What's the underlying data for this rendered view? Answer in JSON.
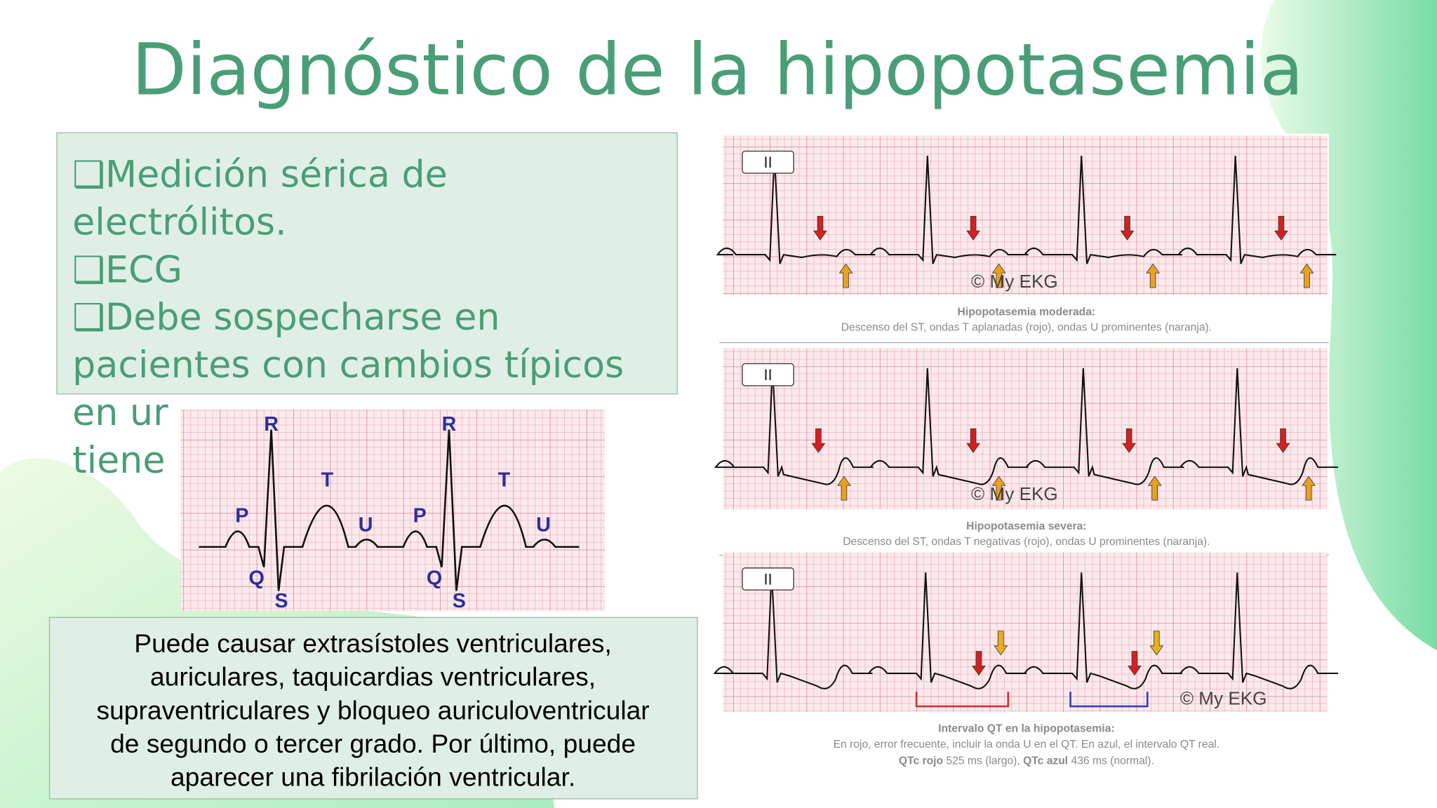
{
  "title": "Diagnóstico de la hipopotasemia",
  "left_box": {
    "lines": [
      "❑Medición sérica de",
      "electrólitos.",
      "❑ECG",
      "❑Debe sospecharse en",
      "pacientes con cambios típicos",
      "en ur",
      "tiene"
    ]
  },
  "small_ecg": {
    "labels": [
      "R",
      "R",
      "T",
      "T",
      "P",
      "P",
      "U",
      "U",
      "Q",
      "Q",
      "S",
      "S"
    ]
  },
  "bottom_box": {
    "lines": [
      "Puede causar extrasístoles ventriculares,",
      "auriculares, taquicardias ventriculares,",
      "supraventriculares y bloqueo auriculoventricular",
      "de segundo o tercer grado. Por último, puede",
      "aparecer una fibrilación ventricular."
    ]
  },
  "ecg_panel": {
    "strips": [
      {
        "lead": "II",
        "watermark": "© My EKG",
        "caption_title": "Hipopotasemia moderada:",
        "caption": "Descenso del ST, ondas T aplanadas (rojo), ondas U prominentes (naranja)."
      },
      {
        "lead": "II",
        "watermark": "© My EKG",
        "caption_title": "Hipopotasemia severa:",
        "caption": "Descenso del ST, ondas T negativas (rojo), ondas U prominentes (naranja)."
      },
      {
        "lead": "II",
        "watermark": "© My EKG",
        "caption_title": "Intervalo QT en la hipopotasemia:",
        "caption": "En rojo, error frecuente, incluir la onda U en el QT. En azul, el intervalo QT real.",
        "caption_parts": [
          "QTc rojo",
          " 525 ms (largo), ",
          "QTc azul",
          " 436 ms (normal)."
        ]
      }
    ]
  }
}
